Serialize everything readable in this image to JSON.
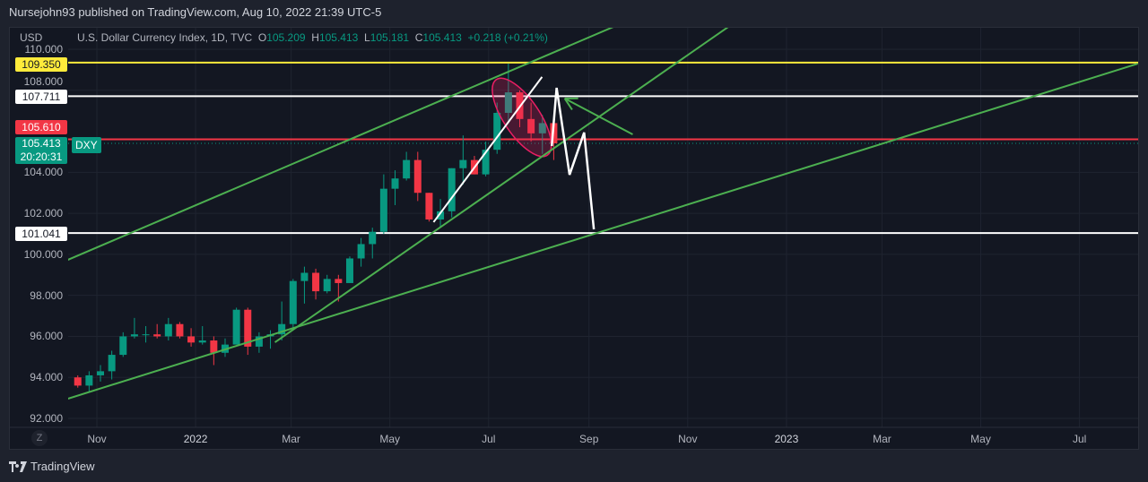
{
  "header": {
    "published": "Nursejohn93 published on TradingView.com, Aug 10, 2022 21:39 UTC-5"
  },
  "legend": {
    "currency": "USD",
    "title": "U.S. Dollar Currency Index, 1D, TVC",
    "o_label": "O",
    "o": "105.209",
    "h_label": "H",
    "h": "105.413",
    "l_label": "L",
    "l": "105.181",
    "c_label": "C",
    "c": "105.413",
    "change": "+0.218 (+0.21%)"
  },
  "symbol_tag": "DXY",
  "price_labels": {
    "yellow": "109.350",
    "white_top": "107.711",
    "red": "105.610",
    "current": "105.413",
    "countdown": "20:20:31",
    "white_bottom": "101.041"
  },
  "footer": {
    "zoom_button": "Z",
    "brand": "TradingView"
  },
  "colors": {
    "up": "#089981",
    "down": "#f23645",
    "yellow": "#ffeb3b",
    "trend": "#4caf50",
    "white": "#ffffff",
    "ellipse": "#e91e63"
  },
  "chart_data": {
    "type": "candlestick",
    "title": "U.S. Dollar Currency Index, 1D, TVC",
    "y_ticks": [
      "110.000",
      "108.000",
      "104.000",
      "102.000",
      "100.000",
      "98.000",
      "96.000",
      "94.000",
      "92.000"
    ],
    "ylim": [
      91.5,
      111.1
    ],
    "x_ticks": [
      {
        "label": "Nov",
        "date": "2021-11-01"
      },
      {
        "label": "2022",
        "date": "2022-01-01"
      },
      {
        "label": "Mar",
        "date": "2022-03-01"
      },
      {
        "label": "May",
        "date": "2022-05-01"
      },
      {
        "label": "Jul",
        "date": "2022-07-01"
      },
      {
        "label": "Sep",
        "date": "2022-09-01"
      },
      {
        "label": "Nov",
        "date": "2022-11-01"
      },
      {
        "label": "2023",
        "date": "2023-01-01"
      },
      {
        "label": "Mar",
        "date": "2023-03-01"
      },
      {
        "label": "May",
        "date": "2023-05-01"
      },
      {
        "label": "Jul",
        "date": "2023-07-01"
      }
    ],
    "grid": true,
    "candles": [
      {
        "d": "2021-10-18",
        "o": 94.0,
        "h": 94.1,
        "l": 93.5,
        "c": 93.6
      },
      {
        "d": "2021-10-25",
        "o": 93.6,
        "h": 94.3,
        "l": 93.3,
        "c": 94.1
      },
      {
        "d": "2021-11-01",
        "o": 94.1,
        "h": 94.6,
        "l": 93.8,
        "c": 94.3
      },
      {
        "d": "2021-11-08",
        "o": 94.3,
        "h": 95.3,
        "l": 93.9,
        "c": 95.1
      },
      {
        "d": "2021-11-15",
        "o": 95.1,
        "h": 96.2,
        "l": 95.0,
        "c": 96.0
      },
      {
        "d": "2021-11-22",
        "o": 96.0,
        "h": 96.9,
        "l": 95.9,
        "c": 96.1
      },
      {
        "d": "2021-11-29",
        "o": 96.1,
        "h": 96.5,
        "l": 95.7,
        "c": 96.1
      },
      {
        "d": "2021-12-06",
        "o": 96.1,
        "h": 96.6,
        "l": 95.9,
        "c": 96.0
      },
      {
        "d": "2021-12-13",
        "o": 96.0,
        "h": 96.9,
        "l": 95.8,
        "c": 96.6
      },
      {
        "d": "2021-12-20",
        "o": 96.6,
        "h": 96.7,
        "l": 95.9,
        "c": 96.0
      },
      {
        "d": "2021-12-27",
        "o": 96.0,
        "h": 96.4,
        "l": 95.5,
        "c": 95.7
      },
      {
        "d": "2022-01-03",
        "o": 95.7,
        "h": 96.5,
        "l": 95.6,
        "c": 95.8
      },
      {
        "d": "2022-01-10",
        "o": 95.8,
        "h": 96.0,
        "l": 94.6,
        "c": 95.2
      },
      {
        "d": "2022-01-17",
        "o": 95.2,
        "h": 95.9,
        "l": 95.0,
        "c": 95.6
      },
      {
        "d": "2022-01-24",
        "o": 95.6,
        "h": 97.4,
        "l": 95.6,
        "c": 97.3
      },
      {
        "d": "2022-01-31",
        "o": 97.3,
        "h": 97.4,
        "l": 95.1,
        "c": 95.5
      },
      {
        "d": "2022-02-07",
        "o": 95.5,
        "h": 96.2,
        "l": 95.2,
        "c": 96.0
      },
      {
        "d": "2022-02-14",
        "o": 96.0,
        "h": 96.3,
        "l": 95.4,
        "c": 96.1
      },
      {
        "d": "2022-02-21",
        "o": 96.1,
        "h": 97.7,
        "l": 95.8,
        "c": 96.6
      },
      {
        "d": "2022-02-28",
        "o": 96.6,
        "h": 98.8,
        "l": 96.3,
        "c": 98.7
      },
      {
        "d": "2022-03-07",
        "o": 98.7,
        "h": 99.4,
        "l": 97.6,
        "c": 99.1
      },
      {
        "d": "2022-03-14",
        "o": 99.1,
        "h": 99.3,
        "l": 97.8,
        "c": 98.2
      },
      {
        "d": "2022-03-21",
        "o": 98.2,
        "h": 99.0,
        "l": 98.1,
        "c": 98.8
      },
      {
        "d": "2022-03-28",
        "o": 98.8,
        "h": 99.0,
        "l": 97.7,
        "c": 98.6
      },
      {
        "d": "2022-04-04",
        "o": 98.6,
        "h": 99.9,
        "l": 98.6,
        "c": 99.8
      },
      {
        "d": "2022-04-11",
        "o": 99.8,
        "h": 100.8,
        "l": 99.4,
        "c": 100.5
      },
      {
        "d": "2022-04-18",
        "o": 100.5,
        "h": 101.3,
        "l": 99.8,
        "c": 101.1
      },
      {
        "d": "2022-04-25",
        "o": 101.1,
        "h": 103.9,
        "l": 101.0,
        "c": 103.2
      },
      {
        "d": "2022-05-02",
        "o": 103.2,
        "h": 104.1,
        "l": 102.4,
        "c": 103.7
      },
      {
        "d": "2022-05-09",
        "o": 103.7,
        "h": 105.0,
        "l": 103.6,
        "c": 104.6
      },
      {
        "d": "2022-05-16",
        "o": 104.6,
        "h": 105.0,
        "l": 102.6,
        "c": 103.0
      },
      {
        "d": "2022-05-23",
        "o": 103.0,
        "h": 103.0,
        "l": 101.6,
        "c": 101.7
      },
      {
        "d": "2022-05-30",
        "o": 101.7,
        "h": 102.7,
        "l": 101.3,
        "c": 102.1
      },
      {
        "d": "2022-06-06",
        "o": 102.1,
        "h": 104.2,
        "l": 101.8,
        "c": 104.2
      },
      {
        "d": "2022-06-13",
        "o": 104.2,
        "h": 105.8,
        "l": 103.4,
        "c": 104.6
      },
      {
        "d": "2022-06-20",
        "o": 104.6,
        "h": 104.8,
        "l": 103.9,
        "c": 103.9
      },
      {
        "d": "2022-06-27",
        "o": 103.9,
        "h": 105.5,
        "l": 103.8,
        "c": 105.1
      },
      {
        "d": "2022-07-04",
        "o": 105.1,
        "h": 107.4,
        "l": 104.9,
        "c": 106.9
      },
      {
        "d": "2022-07-11",
        "o": 106.9,
        "h": 109.3,
        "l": 106.4,
        "c": 107.9
      },
      {
        "d": "2022-07-18",
        "o": 107.9,
        "h": 108.0,
        "l": 106.2,
        "c": 106.6
      },
      {
        "d": "2022-07-25",
        "o": 106.6,
        "h": 107.4,
        "l": 105.5,
        "c": 105.9
      },
      {
        "d": "2022-08-01",
        "o": 105.9,
        "h": 106.8,
        "l": 104.9,
        "c": 106.4
      },
      {
        "d": "2022-08-08",
        "o": 106.4,
        "h": 106.5,
        "l": 104.6,
        "c": 105.413
      }
    ],
    "horizontal_levels": [
      {
        "price": 109.35,
        "color": "#ffeb3b"
      },
      {
        "price": 107.711,
        "color": "#ffffff"
      },
      {
        "price": 105.61,
        "color": "#f23645"
      },
      {
        "price": 101.041,
        "color": "#ffffff"
      }
    ],
    "current_price": 105.413,
    "trendlines": [
      {
        "color": "#4caf50",
        "from": {
          "d": "2021-10-14",
          "p": 99.73
        },
        "to": {
          "d": "2022-09-16",
          "p": 111.09
        }
      },
      {
        "color": "#4caf50",
        "from": {
          "d": "2022-02-19",
          "p": 95.71
        },
        "to": {
          "d": "2022-11-26",
          "p": 111.09
        }
      },
      {
        "color": "#4caf50",
        "from": {
          "d": "2021-10-14",
          "p": 92.96
        },
        "to": {
          "d": "2023-08-06",
          "p": 109.3
        }
      },
      {
        "color": "#ffffff",
        "from": {
          "d": "2022-05-28",
          "p": 101.57
        },
        "to": {
          "d": "2022-08-03",
          "p": 108.65
        }
      }
    ],
    "projection_path": {
      "color": "#ffffff",
      "points": [
        {
          "d": "2022-08-09",
          "p": 105.28
        },
        {
          "d": "2022-08-12",
          "p": 108.12
        },
        {
          "d": "2022-08-20",
          "p": 103.88
        },
        {
          "d": "2022-08-29",
          "p": 105.94
        },
        {
          "d": "2022-09-04",
          "p": 101.22
        }
      ]
    },
    "arrow": {
      "color": "#4caf50",
      "from": {
        "d": "2022-09-28",
        "p": 105.85
      },
      "to": {
        "d": "2022-08-17",
        "p": 107.6
      }
    },
    "ellipse": {
      "color": "#e91e63",
      "from": {
        "d": "2022-07-07",
        "p": 108.38
      },
      "to": {
        "d": "2022-08-05",
        "p": 104.98
      }
    }
  }
}
